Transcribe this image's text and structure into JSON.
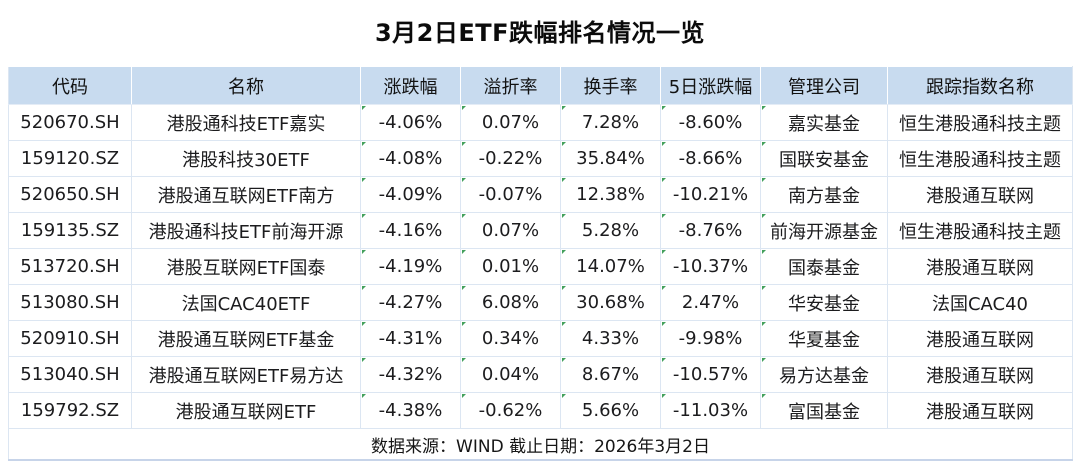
{
  "title": "3月2日ETF跌幅排名情况一览",
  "chart_data": {
    "type": "table",
    "title": "3月2日ETF跌幅排名情况一览",
    "columns": [
      "代码",
      "名称",
      "涨跌幅",
      "溢折率",
      "换手率",
      "5日涨跌幅",
      "管理公司",
      "跟踪指数名称"
    ],
    "rows": [
      [
        "520670.SH",
        "港股通科技ETF嘉实",
        "-4.06%",
        "0.07%",
        "7.28%",
        "-8.60%",
        "嘉实基金",
        "恒生港股通科技主题"
      ],
      [
        "159120.SZ",
        "港股科技30ETF",
        "-4.08%",
        "-0.22%",
        "35.84%",
        "-8.66%",
        "国联安基金",
        "恒生港股通科技主题"
      ],
      [
        "520650.SH",
        "港股通互联网ETF南方",
        "-4.09%",
        "-0.07%",
        "12.38%",
        "-10.21%",
        "南方基金",
        "港股通互联网"
      ],
      [
        "159135.SZ",
        "港股通科技ETF前海开源",
        "-4.16%",
        "0.07%",
        "5.28%",
        "-8.76%",
        "前海开源基金",
        "恒生港股通科技主题"
      ],
      [
        "513720.SH",
        "港股互联网ETF国泰",
        "-4.19%",
        "0.01%",
        "14.07%",
        "-10.37%",
        "国泰基金",
        "港股通互联网"
      ],
      [
        "513080.SH",
        "法国CAC40ETF",
        "-4.27%",
        "6.08%",
        "30.68%",
        "2.47%",
        "华安基金",
        "法国CAC40"
      ],
      [
        "520910.SH",
        "港股通互联网ETF基金",
        "-4.31%",
        "0.34%",
        "4.33%",
        "-9.98%",
        "华夏基金",
        "港股通互联网"
      ],
      [
        "513040.SH",
        "港股通互联网ETF易方达",
        "-4.32%",
        "0.04%",
        "8.67%",
        "-10.57%",
        "易方达基金",
        "港股通互联网"
      ],
      [
        "159792.SZ",
        "港股通互联网ETF",
        "-4.38%",
        "-0.62%",
        "5.66%",
        "-11.03%",
        "富国基金",
        "港股通互联网"
      ]
    ],
    "source_note": "数据来源：WIND 截止日期：2026年3月2日"
  },
  "colors": {
    "header_bg": "#c8dbef",
    "grid_line": "#dce6f2",
    "corner_flag_green": "#43a05c",
    "bottom_border": "#c7d4e9",
    "text": "#1c1c1e",
    "background": "#ffffff"
  }
}
